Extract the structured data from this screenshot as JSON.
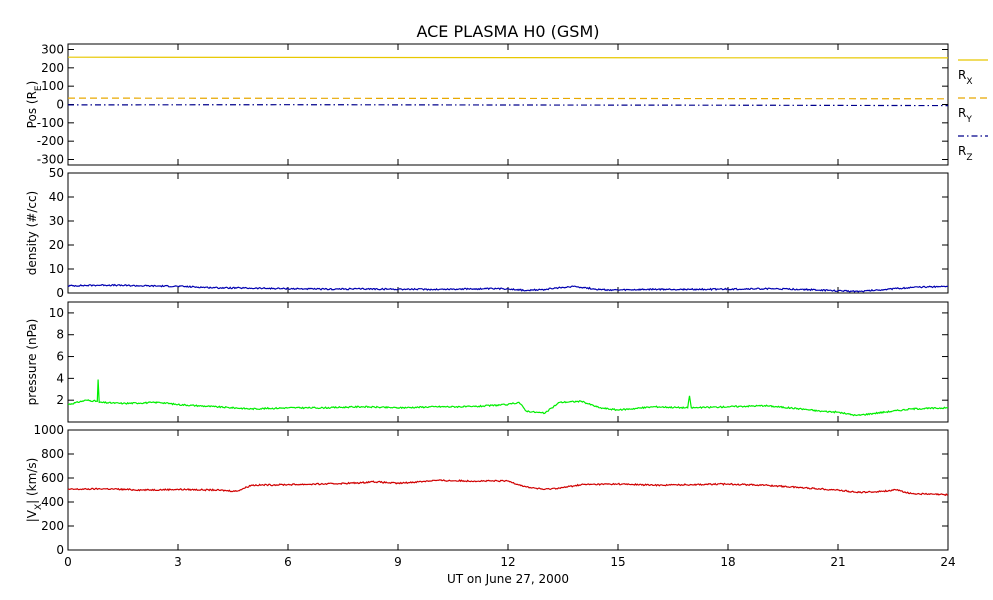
{
  "chart_data": {
    "title": "ACE PLASMA H0 (GSM)",
    "type": "line",
    "x": {
      "label": "UT on June 27, 2000",
      "range": [
        0,
        24
      ],
      "ticks": [
        0,
        3,
        6,
        9,
        12,
        15,
        18,
        21,
        24
      ]
    },
    "panels": [
      {
        "id": "pos",
        "ylabel": {
          "main": "Pos (R",
          "sub": "E",
          "tail": ")"
        },
        "ylim": [
          -330,
          330
        ],
        "yticks": [
          -300,
          -200,
          -100,
          0,
          100,
          200,
          300
        ],
        "series": [
          {
            "name": {
              "main": "R",
              "sub": "X"
            },
            "color": "#e8c800",
            "style": "solid",
            "points": [
              [
                0,
                258
              ],
              [
                6,
                257
              ],
              [
                12,
                256
              ],
              [
                18,
                255
              ],
              [
                24,
                254
              ]
            ]
          },
          {
            "name": {
              "main": "R",
              "sub": "Y"
            },
            "color": "#e8a800",
            "style": "dash",
            "points": [
              [
                0,
                35
              ],
              [
                6,
                34
              ],
              [
                12,
                33
              ],
              [
                18,
                32
              ],
              [
                24,
                31
              ]
            ]
          },
          {
            "name": {
              "main": "R",
              "sub": "Z"
            },
            "color": "#00008b",
            "style": "dashdot",
            "points": [
              [
                0,
                -2
              ],
              [
                6,
                -1
              ],
              [
                12,
                -3
              ],
              [
                18,
                -4
              ],
              [
                24,
                -6
              ]
            ]
          }
        ]
      },
      {
        "id": "density",
        "ylabel": {
          "main": "density (#/cc)"
        },
        "ylim": [
          0,
          50
        ],
        "yticks": [
          0,
          10,
          20,
          30,
          40,
          50
        ],
        "series": [
          {
            "color": "#0000b0",
            "points": [
              [
                0,
                3.0
              ],
              [
                1,
                3.3
              ],
              [
                2,
                3.0
              ],
              [
                3,
                2.8
              ],
              [
                4,
                2.2
              ],
              [
                5,
                2.0
              ],
              [
                6,
                1.8
              ],
              [
                7,
                1.6
              ],
              [
                8,
                1.7
              ],
              [
                9,
                1.6
              ],
              [
                10,
                1.5
              ],
              [
                11,
                1.7
              ],
              [
                12,
                1.8
              ],
              [
                12.5,
                1.0
              ],
              [
                13,
                1.5
              ],
              [
                13.8,
                2.8
              ],
              [
                14.5,
                1.4
              ],
              [
                15,
                1.2
              ],
              [
                16,
                1.5
              ],
              [
                17,
                1.5
              ],
              [
                18,
                1.6
              ],
              [
                19,
                1.8
              ],
              [
                20,
                1.5
              ],
              [
                21,
                0.9
              ],
              [
                21.6,
                0.7
              ],
              [
                22.3,
                1.5
              ],
              [
                23,
                2.3
              ],
              [
                24,
                2.8
              ]
            ]
          }
        ]
      },
      {
        "id": "pressure",
        "ylabel": {
          "main": "pressure (nPa)"
        },
        "ylim": [
          0,
          11
        ],
        "yticks": [
          2,
          4,
          6,
          8,
          10
        ],
        "series": [
          {
            "color": "#00ee00",
            "points": [
              [
                0,
                1.6
              ],
              [
                0.5,
                2.0
              ],
              [
                0.8,
                1.9
              ],
              [
                0.82,
                3.9
              ],
              [
                0.85,
                1.8
              ],
              [
                1.5,
                1.7
              ],
              [
                2.5,
                1.8
              ],
              [
                3,
                1.6
              ],
              [
                4,
                1.4
              ],
              [
                5,
                1.2
              ],
              [
                6,
                1.3
              ],
              [
                7,
                1.3
              ],
              [
                8,
                1.4
              ],
              [
                9,
                1.3
              ],
              [
                10,
                1.4
              ],
              [
                11,
                1.4
              ],
              [
                12,
                1.6
              ],
              [
                12.3,
                1.8
              ],
              [
                12.5,
                1.0
              ],
              [
                13,
                0.8
              ],
              [
                13.4,
                1.8
              ],
              [
                14,
                1.9
              ],
              [
                14.5,
                1.3
              ],
              [
                15,
                1.1
              ],
              [
                16,
                1.4
              ],
              [
                16.9,
                1.3
              ],
              [
                16.95,
                2.4
              ],
              [
                17,
                1.3
              ],
              [
                18,
                1.4
              ],
              [
                19,
                1.5
              ],
              [
                20,
                1.2
              ],
              [
                20.5,
                1.0
              ],
              [
                21,
                0.9
              ],
              [
                21.5,
                0.6
              ],
              [
                22,
                0.8
              ],
              [
                22.5,
                1.0
              ],
              [
                23,
                1.2
              ],
              [
                24,
                1.3
              ]
            ]
          }
        ]
      },
      {
        "id": "vx",
        "ylabel": {
          "pre": "|V",
          "sub": "X",
          "tail": "| (km/s)"
        },
        "ylim": [
          0,
          1000
        ],
        "yticks": [
          0,
          200,
          400,
          600,
          800,
          1000
        ],
        "series": [
          {
            "color": "#d00000",
            "points": [
              [
                0,
                505
              ],
              [
                1,
                510
              ],
              [
                2,
                500
              ],
              [
                3,
                505
              ],
              [
                4,
                500
              ],
              [
                4.6,
                490
              ],
              [
                5,
                540
              ],
              [
                6,
                545
              ],
              [
                7,
                550
              ],
              [
                8,
                560
              ],
              [
                8.3,
                570
              ],
              [
                9,
                555
              ],
              [
                10,
                580
              ],
              [
                11,
                575
              ],
              [
                12,
                575
              ],
              [
                12.5,
                525
              ],
              [
                13,
                505
              ],
              [
                13.5,
                520
              ],
              [
                14,
                545
              ],
              [
                15,
                550
              ],
              [
                16,
                540
              ],
              [
                17,
                545
              ],
              [
                18,
                550
              ],
              [
                19,
                540
              ],
              [
                20,
                520
              ],
              [
                21,
                500
              ],
              [
                21.5,
                480
              ],
              [
                22,
                485
              ],
              [
                22.6,
                500
              ],
              [
                23,
                470
              ],
              [
                24,
                460
              ]
            ]
          }
        ]
      }
    ]
  }
}
